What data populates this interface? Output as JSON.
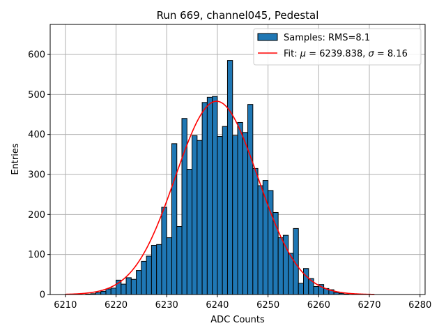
{
  "chart_data": {
    "type": "bar",
    "title": "Run 669, channel045, Pedestal",
    "xlabel": "ADC Counts",
    "ylabel": "Entries",
    "xlim": [
      6207,
      6281
    ],
    "ylim": [
      0,
      675
    ],
    "xticks": [
      6210,
      6220,
      6230,
      6240,
      6250,
      6260,
      6270,
      6280
    ],
    "yticks": [
      0,
      100,
      200,
      300,
      400,
      500,
      600
    ],
    "grid": true,
    "legend_location": "top-right",
    "colors": {
      "bars": "#1f77b4",
      "bar_edge": "#000000",
      "fit": "#ff0000",
      "grid": "#b0b0b0"
    },
    "histogram": {
      "name": "Samples: RMS=8.1",
      "bin_start": 6214,
      "bin_width": 1,
      "counts": [
        1,
        2,
        5,
        8,
        14,
        16,
        36,
        26,
        42,
        38,
        60,
        83,
        96,
        123,
        125,
        218,
        142,
        377,
        170,
        440,
        313,
        397,
        385,
        480,
        493,
        495,
        395,
        420,
        585,
        397,
        430,
        405,
        475,
        315,
        272,
        285,
        260,
        205,
        142,
        148,
        103,
        165,
        28,
        65,
        40,
        20,
        25,
        15,
        12,
        5,
        3,
        1
      ]
    },
    "fit": {
      "name_prefix": "Fit: ",
      "name_mu_symbol": "μ",
      "name_mu_text": " = 6239.838, ",
      "name_sigma_symbol": "σ",
      "name_sigma_text": " = 8.16",
      "type": "gaussian",
      "mu": 6239.838,
      "sigma": 8.16,
      "amplitude": 483,
      "x_range": [
        6210,
        6271
      ]
    }
  }
}
